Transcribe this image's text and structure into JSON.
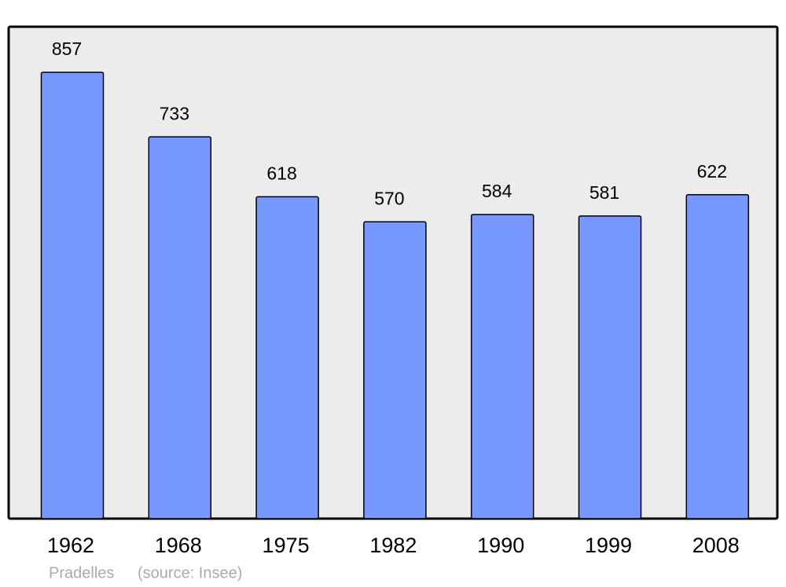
{
  "chart_data": {
    "type": "bar",
    "title": "Pradelles",
    "source": "(source: Insee)",
    "categories": [
      "1962",
      "1968",
      "1975",
      "1982",
      "1990",
      "1999",
      "2008"
    ],
    "values": [
      857,
      733,
      618,
      570,
      584,
      581,
      622
    ],
    "color": "#7799ff",
    "background": "#ececec"
  }
}
